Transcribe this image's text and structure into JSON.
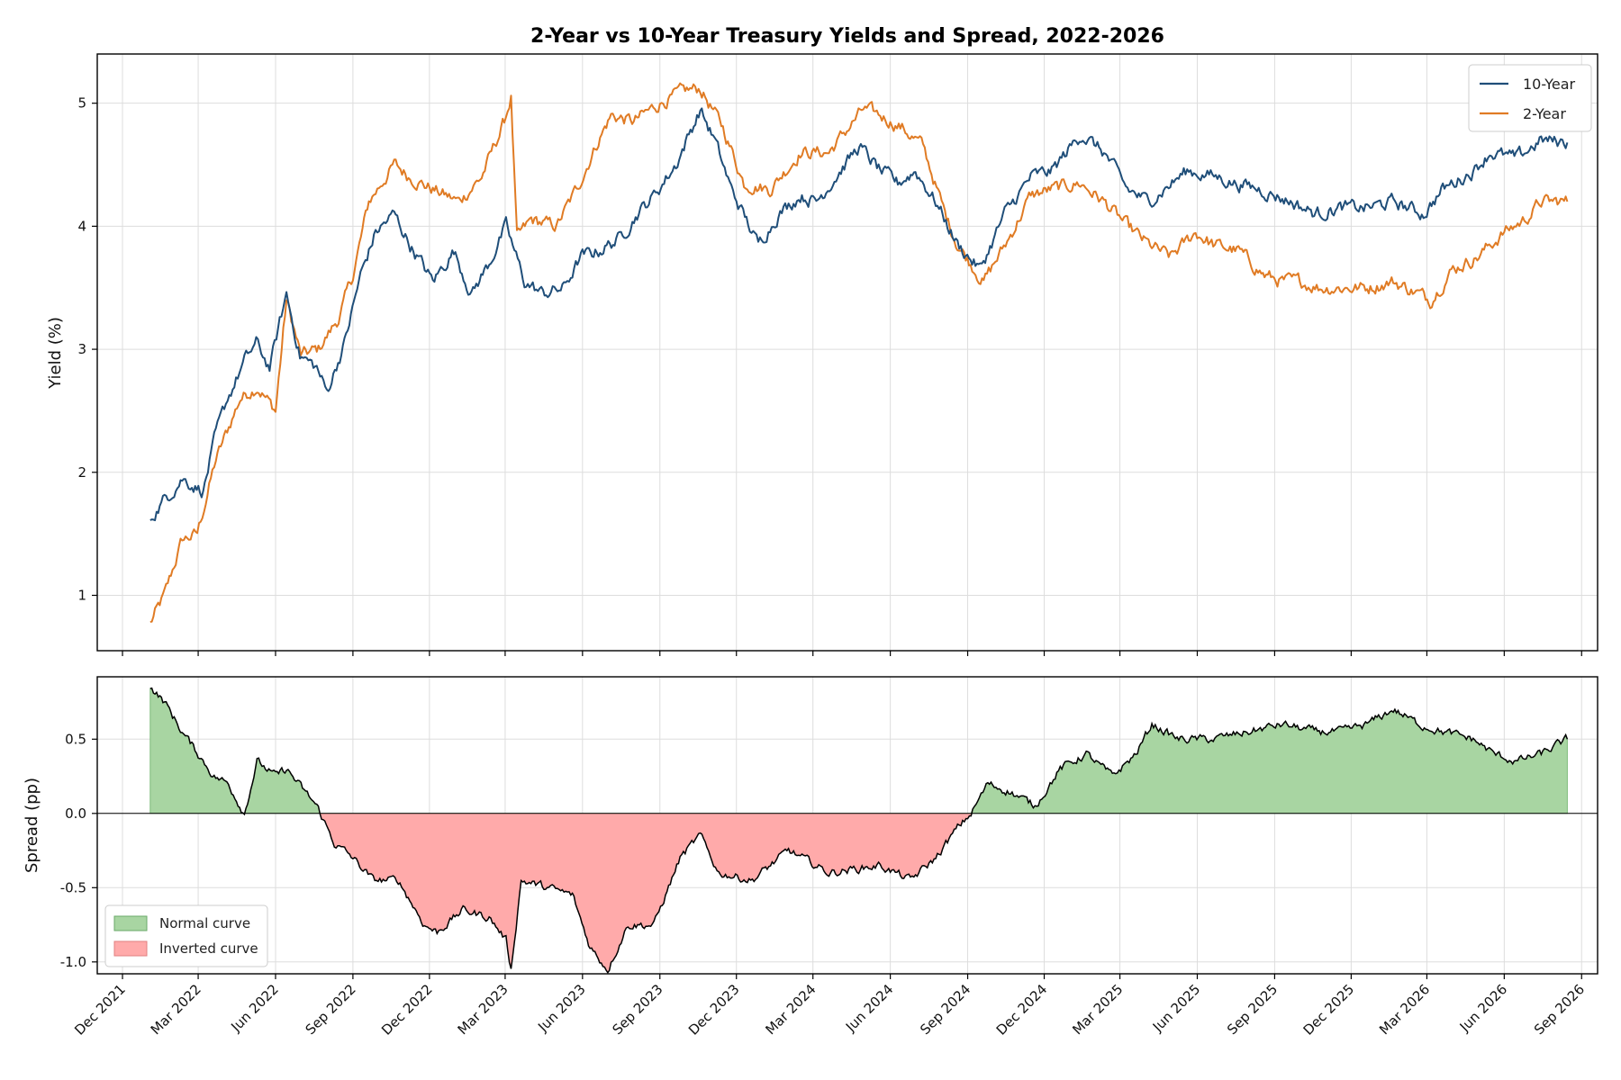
{
  "colors": {
    "ten_year": "#1f4e79",
    "two_year": "#e07b24",
    "normal_fill": "#a8d5a2",
    "inverted_fill": "#ffaaaa",
    "spread_line": "#000000"
  },
  "chart_data": [
    {
      "type": "line",
      "title": "2-Year vs 10-Year Treasury Yields and Spread, 2022-2026",
      "xlabel": "",
      "ylabel": "Yield (%)",
      "xlim": [
        "2021-11-01",
        "2026-09-20"
      ],
      "ylim": [
        0.55,
        5.4
      ],
      "yticks": [
        1,
        2,
        3,
        4,
        5
      ],
      "ytick_labels": [
        "1",
        "2",
        "3",
        "4",
        "5"
      ],
      "grid": true,
      "legend_position": "top-right",
      "series": [
        {
          "name": "10-Year",
          "x": [
            "2022-01-03",
            "2022-01-20",
            "2022-02-10",
            "2022-03-07",
            "2022-03-22",
            "2022-04-05",
            "2022-04-25",
            "2022-05-09",
            "2022-05-25",
            "2022-06-14",
            "2022-06-30",
            "2022-07-20",
            "2022-08-01",
            "2022-08-22",
            "2022-09-10",
            "2022-09-28",
            "2022-10-20",
            "2022-11-08",
            "2022-12-05",
            "2022-12-30",
            "2023-01-20",
            "2023-02-10",
            "2023-03-02",
            "2023-03-24",
            "2023-04-15",
            "2023-05-10",
            "2023-05-30",
            "2023-06-20",
            "2023-07-15",
            "2023-08-05",
            "2023-08-25",
            "2023-09-20",
            "2023-10-19",
            "2023-11-05",
            "2023-11-25",
            "2023-12-27",
            "2024-01-20",
            "2024-02-15",
            "2024-03-05",
            "2024-04-25",
            "2024-05-20",
            "2024-06-10",
            "2024-07-01",
            "2024-07-25",
            "2024-08-20",
            "2024-09-16",
            "2024-10-15",
            "2024-11-15",
            "2024-12-10",
            "2025-01-14",
            "2025-02-10",
            "2025-03-10",
            "2025-04-04",
            "2025-05-20",
            "2025-06-25",
            "2025-07-15",
            "2025-08-15",
            "2025-09-20",
            "2025-10-20",
            "2025-11-20",
            "2025-12-20",
            "2026-01-20",
            "2026-02-25",
            "2026-03-20",
            "2026-04-25",
            "2026-05-15",
            "2026-06-15",
            "2026-07-15",
            "2026-08-15"
          ],
          "values": [
            1.63,
            1.78,
            1.95,
            1.85,
            2.3,
            2.6,
            2.9,
            3.05,
            2.85,
            3.45,
            2.95,
            2.85,
            2.65,
            3.05,
            3.6,
            3.95,
            4.1,
            3.85,
            3.55,
            3.8,
            3.45,
            3.7,
            4.0,
            3.55,
            3.45,
            3.5,
            3.75,
            3.8,
            3.9,
            4.1,
            4.25,
            4.5,
            4.95,
            4.7,
            4.3,
            3.85,
            4.1,
            4.25,
            4.2,
            4.65,
            4.45,
            4.35,
            4.45,
            4.2,
            3.85,
            3.65,
            4.1,
            4.4,
            4.45,
            4.75,
            4.6,
            4.3,
            4.2,
            4.45,
            4.4,
            4.35,
            4.3,
            4.2,
            4.1,
            4.15,
            4.15,
            4.2,
            4.1,
            4.3,
            4.45,
            4.6,
            4.55,
            4.7,
            4.68
          ]
        },
        {
          "name": "2-Year",
          "x": [
            "2022-01-03",
            "2022-01-20",
            "2022-02-10",
            "2022-02-28",
            "2022-03-22",
            "2022-04-20",
            "2022-05-10",
            "2022-06-01",
            "2022-06-14",
            "2022-07-01",
            "2022-07-22",
            "2022-08-15",
            "2022-09-01",
            "2022-09-20",
            "2022-10-20",
            "2022-11-08",
            "2022-12-05",
            "2023-01-05",
            "2023-02-01",
            "2023-02-28",
            "2023-03-08",
            "2023-03-15",
            "2023-04-01",
            "2023-05-01",
            "2023-05-25",
            "2023-06-20",
            "2023-07-05",
            "2023-08-01",
            "2023-09-01",
            "2023-10-01",
            "2023-10-19",
            "2023-11-15",
            "2023-12-10",
            "2024-01-10",
            "2024-02-15",
            "2024-03-20",
            "2024-04-30",
            "2024-05-20",
            "2024-06-15",
            "2024-07-10",
            "2024-08-05",
            "2024-08-20",
            "2024-09-20",
            "2024-10-20",
            "2024-11-15",
            "2024-12-10",
            "2025-01-13",
            "2025-02-10",
            "2025-03-10",
            "2025-04-04",
            "2025-04-30",
            "2025-05-30",
            "2025-06-20",
            "2025-07-20",
            "2025-08-20",
            "2025-09-10",
            "2025-10-01",
            "2025-10-25",
            "2025-11-20",
            "2025-12-20",
            "2026-01-20",
            "2026-02-20",
            "2026-03-05",
            "2026-04-01",
            "2026-04-30",
            "2026-06-01",
            "2026-06-25",
            "2026-07-15",
            "2026-08-15"
          ],
          "values": [
            0.77,
            1.0,
            1.45,
            1.5,
            2.1,
            2.6,
            2.7,
            2.5,
            3.4,
            2.95,
            3.0,
            3.25,
            3.6,
            4.2,
            4.5,
            4.4,
            4.3,
            4.2,
            4.4,
            4.85,
            5.05,
            3.9,
            4.05,
            4.0,
            4.3,
            4.7,
            4.9,
            4.85,
            5.0,
            5.1,
            5.12,
            4.8,
            4.35,
            4.3,
            4.6,
            4.6,
            4.95,
            4.9,
            4.8,
            4.65,
            4.1,
            3.85,
            3.55,
            3.9,
            4.25,
            4.3,
            4.35,
            4.2,
            4.0,
            3.85,
            3.75,
            3.95,
            3.85,
            3.8,
            3.6,
            3.55,
            3.55,
            3.5,
            3.5,
            3.5,
            3.55,
            3.45,
            3.4,
            3.65,
            3.75,
            3.95,
            4.05,
            4.2,
            4.2
          ]
        }
      ]
    },
    {
      "type": "area",
      "title": "",
      "xlabel": "",
      "ylabel": "Spread (pp)",
      "xlim": [
        "2021-11-01",
        "2026-09-20"
      ],
      "ylim": [
        -1.08,
        0.92
      ],
      "yticks": [
        -1.0,
        -0.5,
        0.0,
        0.5
      ],
      "ytick_labels": [
        "-1.0",
        "-0.5",
        "0.0",
        "0.5"
      ],
      "grid": true,
      "legend_position": "lower-left",
      "legend": [
        {
          "name": "Normal curve",
          "color": "#a8d5a2"
        },
        {
          "name": "Inverted curve",
          "color": "#ffaaaa"
        }
      ],
      "series": [
        {
          "name": "Spread",
          "x": [
            "2022-01-03",
            "2022-01-20",
            "2022-02-10",
            "2022-03-01",
            "2022-03-20",
            "2022-04-06",
            "2022-04-25",
            "2022-05-10",
            "2022-06-01",
            "2022-06-14",
            "2022-07-05",
            "2022-07-20",
            "2022-08-10",
            "2022-09-01",
            "2022-09-25",
            "2022-10-25",
            "2022-11-25",
            "2022-12-10",
            "2023-01-10",
            "2023-02-10",
            "2023-03-02",
            "2023-03-08",
            "2023-03-20",
            "2023-04-20",
            "2023-05-20",
            "2023-06-10",
            "2023-07-01",
            "2023-07-25",
            "2023-08-25",
            "2023-09-25",
            "2023-10-19",
            "2023-11-10",
            "2023-12-20",
            "2024-02-01",
            "2024-03-20",
            "2024-05-20",
            "2024-06-25",
            "2024-07-25",
            "2024-08-20",
            "2024-09-05",
            "2024-09-25",
            "2024-10-20",
            "2024-11-20",
            "2024-12-20",
            "2025-01-20",
            "2025-02-20",
            "2025-03-20",
            "2025-04-08",
            "2025-05-10",
            "2025-06-20",
            "2025-08-01",
            "2025-09-10",
            "2025-10-20",
            "2025-11-20",
            "2025-12-20",
            "2026-01-20",
            "2026-02-20",
            "2026-03-20",
            "2026-04-25",
            "2026-05-20",
            "2026-06-15",
            "2026-07-15",
            "2026-08-15"
          ],
          "values": [
            0.85,
            0.75,
            0.55,
            0.4,
            0.25,
            0.2,
            0.0,
            0.35,
            0.25,
            0.3,
            0.15,
            0.05,
            -0.2,
            -0.3,
            -0.45,
            -0.45,
            -0.75,
            -0.8,
            -0.65,
            -0.7,
            -0.85,
            -1.05,
            -0.45,
            -0.5,
            -0.55,
            -0.9,
            -1.05,
            -0.75,
            -0.75,
            -0.3,
            -0.15,
            -0.4,
            -0.45,
            -0.25,
            -0.4,
            -0.35,
            -0.45,
            -0.3,
            -0.1,
            0.0,
            0.2,
            0.15,
            0.05,
            0.3,
            0.4,
            0.25,
            0.4,
            0.6,
            0.5,
            0.5,
            0.55,
            0.6,
            0.55,
            0.55,
            0.6,
            0.7,
            0.6,
            0.55,
            0.5,
            0.4,
            0.35,
            0.4,
            0.5
          ]
        }
      ]
    }
  ]
}
